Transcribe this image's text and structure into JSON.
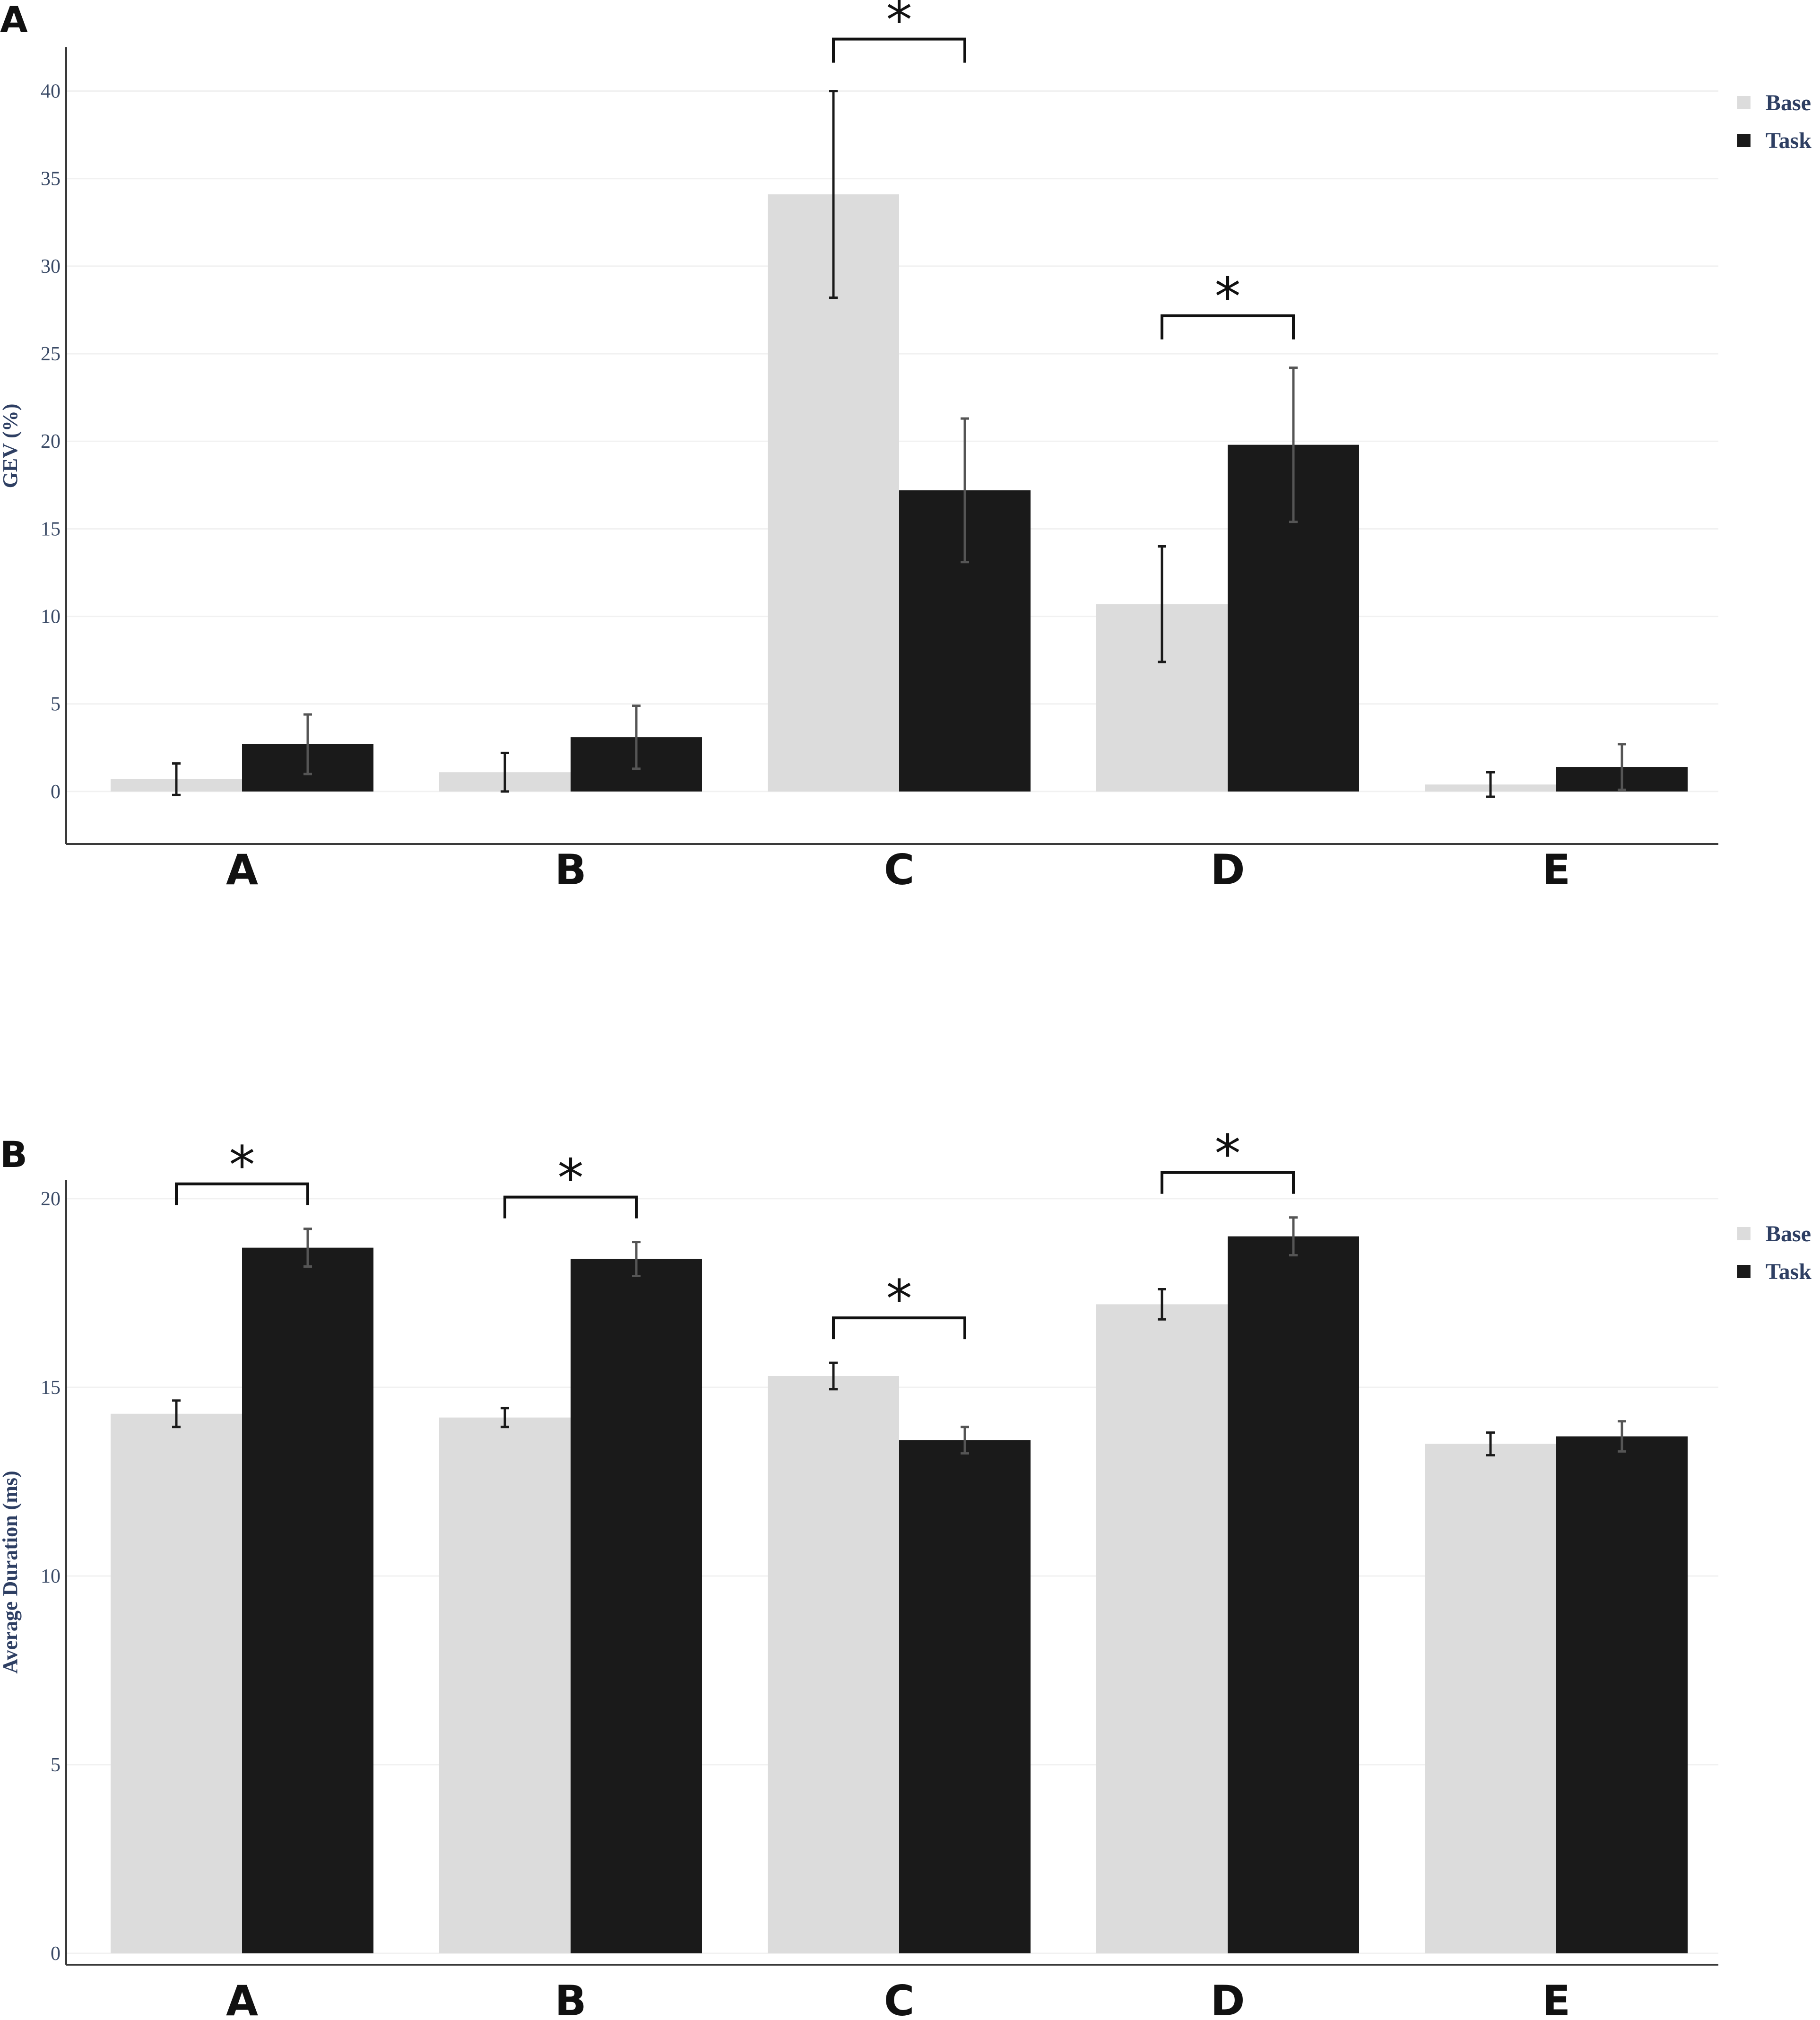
{
  "colors": {
    "base": "#dcdcdc",
    "task": "#1a1a1a",
    "axis": "#3a3a3a",
    "grid": "#f1f1f1",
    "text_label": "#2e3f63"
  },
  "chart_data": [
    {
      "panel_label": "A",
      "type": "bar",
      "categories": [
        "A",
        "B",
        "C",
        "D",
        "E"
      ],
      "ylabel": "GEV (%)",
      "xlabel": "",
      "ylim": [
        -3,
        42.5
      ],
      "yticks": [
        0,
        5,
        10,
        15,
        20,
        25,
        30,
        35,
        40
      ],
      "grid": true,
      "legend_position": "top-right",
      "series": [
        {
          "name": "Base",
          "values": [
            0.7,
            1.1,
            34.1,
            10.7,
            0.4
          ],
          "errors": [
            0.9,
            1.1,
            5.9,
            3.3,
            0.7
          ]
        },
        {
          "name": "Task",
          "values": [
            2.7,
            3.1,
            17.2,
            19.8,
            1.4
          ],
          "errors": [
            1.7,
            1.8,
            4.1,
            4.4,
            1.3
          ]
        }
      ],
      "significance": [
        {
          "category": "C",
          "label": "*"
        },
        {
          "category": "D",
          "label": "*"
        }
      ]
    },
    {
      "panel_label": "B",
      "type": "bar",
      "categories": [
        "A",
        "B",
        "C",
        "D",
        "E"
      ],
      "ylabel": "Average Duration (ms)",
      "xlabel": "",
      "ylim": [
        -0.3,
        20.5
      ],
      "yticks": [
        0,
        5,
        10,
        15,
        20
      ],
      "grid": true,
      "legend_position": "top-right",
      "series": [
        {
          "name": "Base",
          "values": [
            14.3,
            14.2,
            15.3,
            17.2,
            13.5
          ],
          "errors": [
            0.35,
            0.25,
            0.35,
            0.4,
            0.3
          ]
        },
        {
          "name": "Task",
          "values": [
            18.7,
            18.4,
            13.6,
            19.0,
            13.7
          ],
          "errors": [
            0.5,
            0.45,
            0.35,
            0.5,
            0.4
          ]
        }
      ],
      "significance": [
        {
          "category": "A",
          "label": "*"
        },
        {
          "category": "B",
          "label": "*"
        },
        {
          "category": "C",
          "label": "*"
        },
        {
          "category": "D",
          "label": "*"
        }
      ]
    }
  ]
}
